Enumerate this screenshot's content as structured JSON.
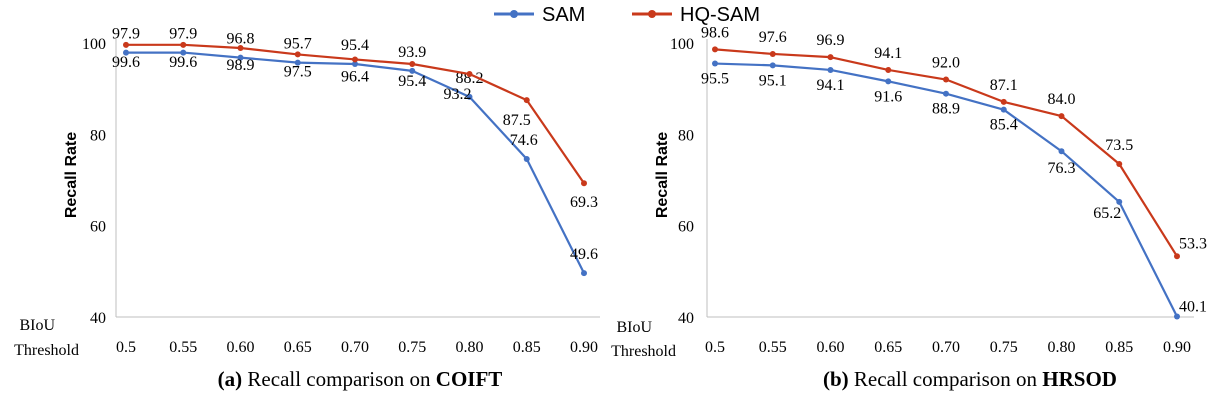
{
  "legend": {
    "items": [
      {
        "name": "SAM",
        "color": "#4472C4"
      },
      {
        "name": "HQ-SAM",
        "color": "#C9391B"
      }
    ],
    "placement": "top-center"
  },
  "chart_data": [
    {
      "type": "line",
      "xlabel_lines": [
        "BIoU",
        "Threshold"
      ],
      "ylabel": "Recall Rate",
      "categories": [
        "0.5",
        "0.55",
        "0.60",
        "0.65",
        "0.70",
        "0.75",
        "0.80",
        "0.85",
        "0.90"
      ],
      "ylim": [
        40,
        100
      ],
      "yticks": [
        40,
        60,
        80,
        100
      ],
      "grid": false,
      "series": [
        {
          "name": "SAM",
          "color": "#4472C4",
          "values": [
            97.9,
            97.9,
            96.8,
            95.7,
            95.4,
            93.9,
            88.2,
            74.6,
            49.6
          ],
          "label_text": [
            "97.9",
            "97.9",
            "96.8",
            "95.7",
            "95.4",
            "93.9",
            "88.2",
            "74.6",
            "49.6"
          ]
        },
        {
          "name": "HQ-SAM",
          "color": "#C9391B",
          "values": [
            99.6,
            99.6,
            98.9,
            97.5,
            96.4,
            95.4,
            93.2,
            87.5,
            69.3
          ],
          "label_text": [
            "99.6",
            "99.6",
            "98.9",
            "97.5",
            "96.4",
            "95.4",
            "93.2",
            "87.5",
            "69.3"
          ]
        }
      ],
      "caption": {
        "prefix": "(a)",
        "text": " Recall comparison on ",
        "bold": "COIFT"
      }
    },
    {
      "type": "line",
      "xlabel_lines": [
        "BIoU",
        "Threshold"
      ],
      "ylabel": "Recall Rate",
      "categories": [
        "0.5",
        "0.55",
        "0.60",
        "0.65",
        "0.70",
        "0.75",
        "0.80",
        "0.85",
        "0.90"
      ],
      "ylim": [
        40,
        100
      ],
      "yticks": [
        40,
        60,
        80,
        100
      ],
      "grid": false,
      "series": [
        {
          "name": "SAM",
          "color": "#4472C4",
          "values": [
            95.5,
            95.1,
            94.1,
            91.6,
            88.9,
            85.4,
            76.3,
            65.2,
            40.1
          ],
          "label_text": [
            "95.5",
            "95.1",
            "94.1",
            "91.6",
            "88.9",
            "85.4",
            "76.3",
            "65.2",
            "40.1"
          ]
        },
        {
          "name": "HQ-SAM",
          "color": "#C9391B",
          "values": [
            98.6,
            97.6,
            96.9,
            94.1,
            92.0,
            87.1,
            84.0,
            73.5,
            53.3
          ],
          "label_text": [
            "98.6",
            "97.6",
            "96.9",
            "94.1",
            "92.0",
            "87.1",
            "84.0",
            "73.5",
            "53.3"
          ]
        }
      ],
      "caption": {
        "prefix": "(b)",
        "text": " Recall comparison on ",
        "bold": "HRSOD"
      }
    }
  ]
}
